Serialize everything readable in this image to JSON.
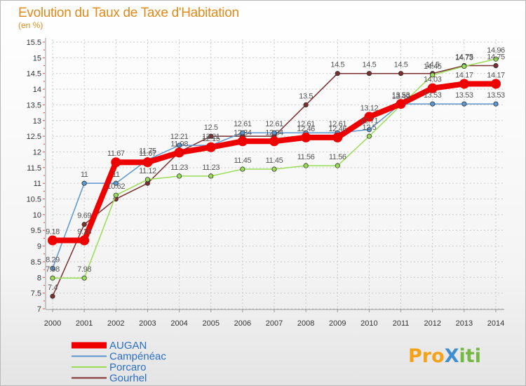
{
  "chart_data": {
    "type": "line",
    "title": "Evolution du Taux de Taxe d'Habitation",
    "subtitle": "(en %)",
    "x": [
      "2000",
      "2001",
      "2002",
      "2003",
      "2004",
      "2005",
      "2006",
      "2007",
      "2008",
      "2009",
      "2010",
      "2011",
      "2012",
      "2013",
      "2014"
    ],
    "ylim": [
      7,
      15.5
    ],
    "yticks": [
      7,
      7.5,
      8,
      8.5,
      9,
      9.5,
      10,
      10.5,
      11,
      11.5,
      12,
      12.5,
      13,
      13.5,
      14,
      14.5,
      15,
      15.5
    ],
    "ytick_labels": [
      "7",
      "7.5",
      "8",
      "8.5",
      "9",
      "9.5",
      "10",
      "10.5",
      "11",
      "11.5",
      "12",
      "12.5",
      "13",
      "13.5",
      "14",
      "14.5",
      "15",
      "15.5"
    ],
    "grid": true,
    "legend": "bottom-left",
    "series": [
      {
        "name": "Gourhel",
        "color": "#7b2f2f",
        "values": [
          7.4,
          9.69,
          10.5,
          11.0,
          12.0,
          12.5,
          12.5,
          12.5,
          13.5,
          14.5,
          14.5,
          14.5,
          14.5,
          14.75,
          14.75
        ],
        "labels": [
          "7.4",
          "9.69",
          "",
          "",
          "",
          "12.5",
          "",
          "",
          "13.5",
          "14.5",
          "14.5",
          "14.5",
          "14.5",
          "14.75",
          "14.75"
        ]
      },
      {
        "name": "Porcaro",
        "color": "#99dd55",
        "values": [
          7.98,
          7.98,
          10.62,
          11.12,
          11.23,
          11.23,
          11.45,
          11.45,
          11.56,
          11.56,
          12.5,
          13.49,
          14.45,
          14.73,
          14.96
        ],
        "labels": [
          "7.98",
          "7.98",
          "10.62",
          "11.12",
          "11.23",
          "11.23",
          "11.45",
          "11.45",
          "11.56",
          "11.56",
          "12.5",
          "13.49",
          "14.45",
          "14.73",
          "14.96"
        ]
      },
      {
        "name": "Campénéac",
        "color": "#5d97cf",
        "values": [
          8.29,
          11.0,
          11.0,
          11.75,
          12.21,
          12.21,
          12.61,
          12.61,
          12.61,
          12.61,
          12.71,
          13.53,
          13.53,
          13.53,
          13.53
        ],
        "labels": [
          "8.29",
          "11",
          "11",
          "11.75",
          "12.21",
          "12.21",
          "12.61",
          "12.61",
          "12.61",
          "12.61",
          "12.71",
          "13.53",
          "13.53",
          "13.53",
          "13.53"
        ]
      },
      {
        "name": "AUGAN",
        "color": "#ee0000",
        "values": [
          9.18,
          9.18,
          11.67,
          11.67,
          11.98,
          12.15,
          12.34,
          12.34,
          12.46,
          12.46,
          13.12,
          13.53,
          14.03,
          14.17,
          14.17
        ],
        "labels": [
          "9.18",
          "9.18",
          "11.67",
          "11.67",
          "11.98",
          "12.15",
          "12.34",
          "12.34",
          "12.46",
          "12.46",
          "13.12",
          "13.53",
          "14.03",
          "14.17",
          "14.17"
        ]
      }
    ]
  },
  "legend_items": [
    {
      "label": "AUGAN",
      "color": "#ee0000"
    },
    {
      "label": "Campénéac",
      "color": "#5d97cf"
    },
    {
      "label": "Porcaro",
      "color": "#99dd55"
    },
    {
      "label": "Gourhel",
      "color": "#7b2f2f"
    }
  ],
  "logo": {
    "text": "ProXiti",
    "colors": [
      "#f3a21a",
      "#3f8fd0",
      "#75b843"
    ]
  }
}
